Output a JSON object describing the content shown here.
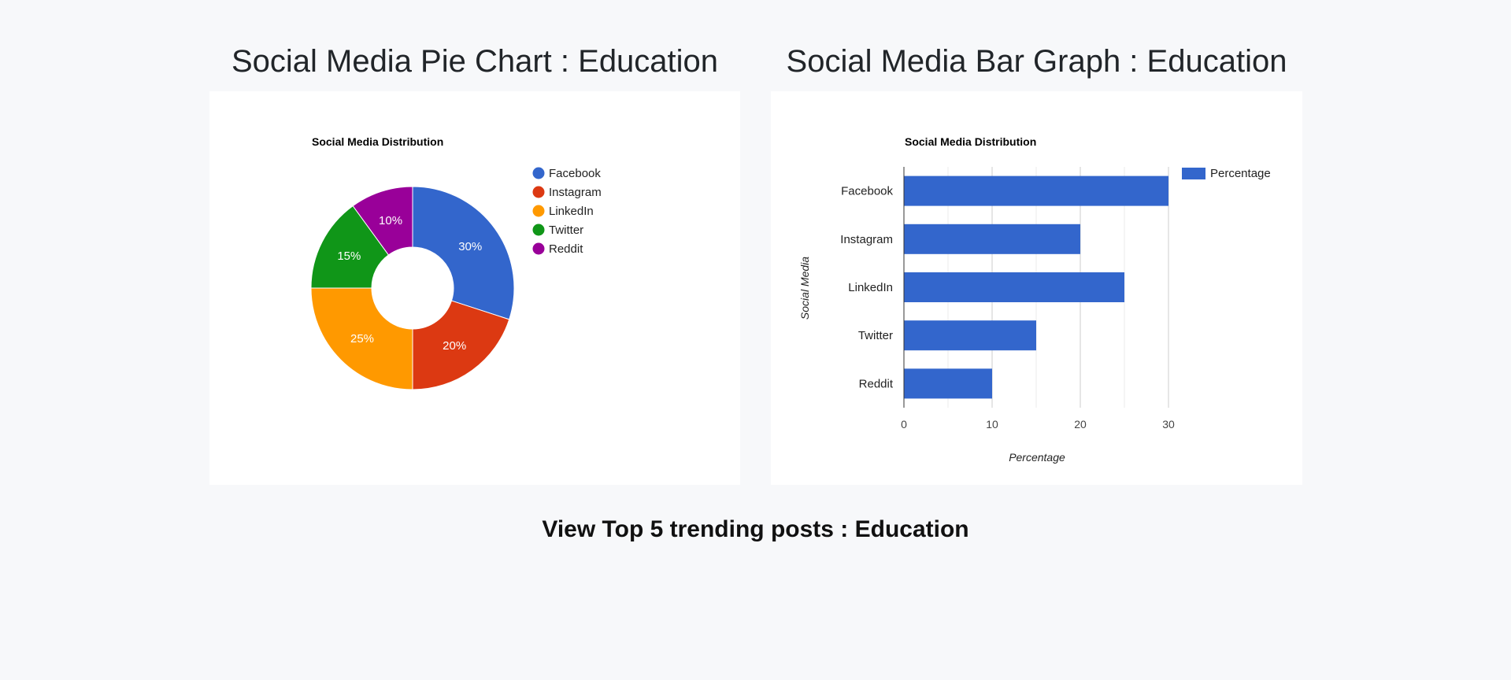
{
  "page": {
    "pie_heading": "Social Media Pie Chart : Education",
    "bar_heading": "Social Media Bar Graph : Education",
    "trending_link": "View Top 5 trending posts : Education"
  },
  "chart_data": [
    {
      "type": "pie",
      "title": "Social Media Distribution",
      "donut": true,
      "categories": [
        "Facebook",
        "Instagram",
        "LinkedIn",
        "Twitter",
        "Reddit"
      ],
      "values": [
        30,
        20,
        25,
        15,
        10
      ],
      "labels": [
        "30%",
        "20%",
        "25%",
        "15%",
        "10%"
      ],
      "colors": [
        "#3366cc",
        "#dc3912",
        "#ff9900",
        "#109618",
        "#990099"
      ],
      "legend": "right"
    },
    {
      "type": "bar",
      "orientation": "horizontal",
      "title": "Social Media Distribution",
      "categories": [
        "Facebook",
        "Instagram",
        "LinkedIn",
        "Twitter",
        "Reddit"
      ],
      "series": [
        {
          "name": "Percentage",
          "values": [
            30,
            20,
            25,
            15,
            10
          ],
          "color": "#3366cc"
        }
      ],
      "xlabel": "Percentage",
      "ylabel": "Social Media",
      "xlim": [
        0,
        30
      ],
      "xticks": [
        0,
        10,
        20,
        30
      ],
      "grid": true,
      "legend": "top-right"
    }
  ]
}
